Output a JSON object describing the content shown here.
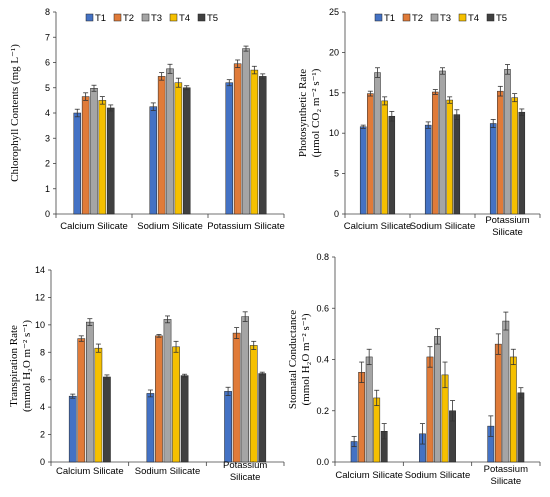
{
  "colors": {
    "T1": "#4472C4",
    "T2": "#E07B39",
    "T3": "#A5A5A5",
    "T4": "#F5C000",
    "T5": "#404040"
  },
  "chart_data": [
    {
      "id": "chlorophyll",
      "type": "bar",
      "title": "",
      "ylabel_lines": [
        "Chlorophyll Contents (mg L⁻¹)"
      ],
      "xlabel": "",
      "categories": [
        "Calcium Silicate",
        "Sodium Silicate",
        "Potassium Silicate"
      ],
      "ylim": [
        0,
        8
      ],
      "yticks": [
        "0",
        "1",
        "2",
        "3",
        "4",
        "5",
        "6",
        "7",
        "8"
      ],
      "legend": "top-left",
      "grid": false,
      "series": [
        {
          "name": "T1",
          "values": [
            4.0,
            4.25,
            5.2
          ],
          "errors": [
            0.15,
            0.15,
            0.12
          ]
        },
        {
          "name": "T2",
          "values": [
            4.65,
            5.45,
            5.95
          ],
          "errors": [
            0.15,
            0.15,
            0.15
          ]
        },
        {
          "name": "T3",
          "values": [
            4.98,
            5.75,
            6.55
          ],
          "errors": [
            0.12,
            0.18,
            0.1
          ]
        },
        {
          "name": "T4",
          "values": [
            4.5,
            5.2,
            5.7
          ],
          "errors": [
            0.15,
            0.18,
            0.15
          ]
        },
        {
          "name": "T5",
          "values": [
            4.2,
            5.0,
            5.45
          ],
          "errors": [
            0.12,
            0.08,
            0.1
          ]
        }
      ]
    },
    {
      "id": "photosynthesis",
      "type": "bar",
      "title": "",
      "ylabel_lines": [
        "Photosynthetic Rate",
        "(μmol CO₂ m⁻² s⁻¹)"
      ],
      "xlabel": "",
      "categories": [
        "Calcium Silicate",
        "Sodium Silicate",
        "Potassium Silicate"
      ],
      "ylim": [
        0,
        25
      ],
      "yticks": [
        "0",
        "5",
        "10",
        "15",
        "20",
        "25"
      ],
      "legend": "top-left",
      "grid": false,
      "series": [
        {
          "name": "T1",
          "values": [
            10.8,
            11.0,
            11.2
          ],
          "errors": [
            0.2,
            0.4,
            0.5
          ]
        },
        {
          "name": "T2",
          "values": [
            14.9,
            15.1,
            15.2
          ],
          "errors": [
            0.3,
            0.3,
            0.6
          ]
        },
        {
          "name": "T3",
          "values": [
            17.5,
            17.7,
            17.9
          ],
          "errors": [
            0.6,
            0.4,
            0.6
          ]
        },
        {
          "name": "T4",
          "values": [
            14.0,
            14.1,
            14.4
          ],
          "errors": [
            0.5,
            0.4,
            0.5
          ]
        },
        {
          "name": "T5",
          "values": [
            12.1,
            12.3,
            12.6
          ],
          "errors": [
            0.6,
            0.6,
            0.4
          ]
        }
      ]
    },
    {
      "id": "transpiration",
      "type": "bar",
      "title": "",
      "ylabel_lines": [
        "Transpiration Rate",
        "(mmol H₂O m⁻² s⁻¹)"
      ],
      "xlabel": "",
      "categories": [
        "Calcium Silicate",
        "Sodium Silicate",
        "Potassium Silicate"
      ],
      "ylim": [
        0,
        14
      ],
      "yticks": [
        "0",
        "2",
        "4",
        "6",
        "8",
        "10",
        "12",
        "14"
      ],
      "legend": "none",
      "grid": false,
      "series": [
        {
          "name": "T1",
          "values": [
            4.8,
            5.0,
            5.15
          ],
          "errors": [
            0.15,
            0.25,
            0.3
          ]
        },
        {
          "name": "T2",
          "values": [
            9.0,
            9.2,
            9.4
          ],
          "errors": [
            0.2,
            0.1,
            0.4
          ]
        },
        {
          "name": "T3",
          "values": [
            10.2,
            10.4,
            10.6
          ],
          "errors": [
            0.25,
            0.25,
            0.35
          ]
        },
        {
          "name": "T4",
          "values": [
            8.3,
            8.4,
            8.5
          ],
          "errors": [
            0.3,
            0.4,
            0.3
          ]
        },
        {
          "name": "T5",
          "values": [
            6.2,
            6.3,
            6.45
          ],
          "errors": [
            0.15,
            0.1,
            0.1
          ]
        }
      ]
    },
    {
      "id": "stomatal",
      "type": "bar",
      "title": "",
      "ylabel_lines": [
        "Stomatal Conductance",
        "(mmol H₂O m⁻² s⁻¹)"
      ],
      "xlabel": "",
      "categories": [
        "Calcium Silicate",
        "Sodium Silicate",
        "Potassium Silicate"
      ],
      "ylim": [
        0,
        0.8
      ],
      "yticks": [
        "0.0",
        "0.2",
        "0.4",
        "0.6",
        "0.8"
      ],
      "legend": "none",
      "grid": false,
      "series": [
        {
          "name": "T1",
          "values": [
            0.08,
            0.11,
            0.14
          ],
          "errors": [
            0.02,
            0.04,
            0.04
          ]
        },
        {
          "name": "T2",
          "values": [
            0.35,
            0.41,
            0.46
          ],
          "errors": [
            0.04,
            0.04,
            0.04
          ]
        },
        {
          "name": "T3",
          "values": [
            0.41,
            0.49,
            0.55
          ],
          "errors": [
            0.03,
            0.03,
            0.035
          ]
        },
        {
          "name": "T4",
          "values": [
            0.25,
            0.34,
            0.41
          ],
          "errors": [
            0.03,
            0.05,
            0.03
          ]
        },
        {
          "name": "T5",
          "values": [
            0.12,
            0.2,
            0.27
          ],
          "errors": [
            0.03,
            0.04,
            0.02
          ]
        }
      ]
    }
  ]
}
